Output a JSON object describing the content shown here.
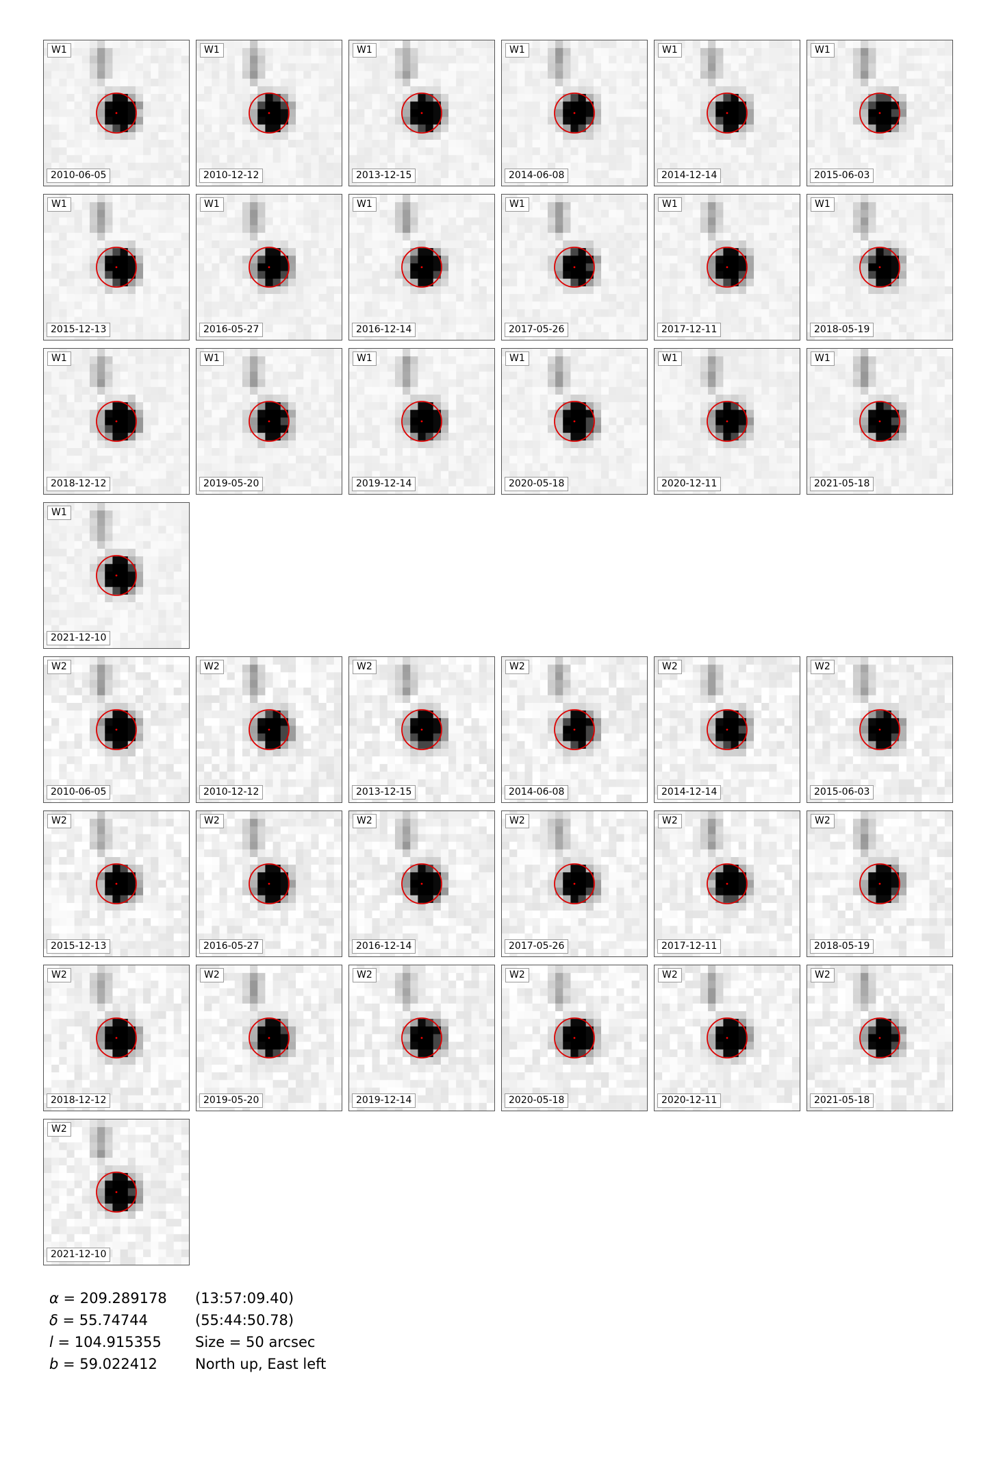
{
  "colors": {
    "circle": "#dd0000",
    "center_dot": "#ff0000",
    "frame": "#555555"
  },
  "bands": [
    {
      "band": "W1",
      "epochs": [
        "2010-06-05",
        "2010-12-12",
        "2013-12-15",
        "2014-06-08",
        "2014-12-14",
        "2015-06-03",
        "2015-12-13",
        "2016-05-27",
        "2016-12-14",
        "2017-05-26",
        "2017-12-11",
        "2018-05-19",
        "2018-12-12",
        "2019-05-20",
        "2019-12-14",
        "2020-05-18",
        "2020-12-11",
        "2021-05-18",
        "2021-12-10"
      ]
    },
    {
      "band": "W2",
      "epochs": [
        "2010-06-05",
        "2010-12-12",
        "2013-12-15",
        "2014-06-08",
        "2014-12-14",
        "2015-06-03",
        "2015-12-13",
        "2016-05-27",
        "2016-12-14",
        "2017-05-26",
        "2017-12-11",
        "2018-05-19",
        "2018-12-12",
        "2019-05-20",
        "2019-12-14",
        "2020-05-18",
        "2020-12-11",
        "2021-05-18",
        "2021-12-10"
      ]
    }
  ],
  "coords": {
    "alpha_sym": "α",
    "alpha_val": " = 209.289178",
    "ra_sexa": "(13:57:09.40)",
    "delta_sym": "δ",
    "delta_val": " = 55.74744",
    "dec_sexa": "(55:44:50.78)",
    "l_sym": "l",
    "l_val": " = 104.915355",
    "size": "Size = 50 arcsec",
    "b_sym": "b",
    "b_val": " = 59.022412",
    "orientation": "North up, East left"
  }
}
